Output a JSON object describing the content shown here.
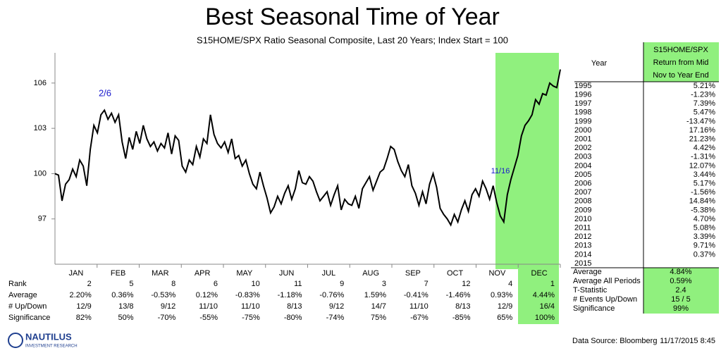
{
  "chart_data": {
    "type": "line",
    "title": "Best Seasonal Time of Year",
    "subtitle": "S15HOME/SPX Ratio Seasonal Composite, Last 20 Years; Index Start = 100",
    "color": "#000000",
    "ylim": [
      94,
      108
    ],
    "yticks": [
      97,
      100,
      103,
      106
    ],
    "annotations": [
      "2/6",
      "11/16"
    ],
    "values": [
      100,
      99.9,
      98.2,
      99.3,
      99.6,
      100.3,
      99.8,
      100.9,
      100.5,
      99.2,
      101.6,
      103.2,
      102.7,
      103.9,
      104.2,
      103.6,
      104.0,
      103.4,
      103.9,
      102.1,
      101.0,
      102.4,
      101.6,
      102.8,
      102.0,
      103.2,
      102.3,
      101.8,
      102.1,
      101.5,
      102.0,
      101.7,
      102.7,
      101.3,
      102.5,
      102.2,
      100.5,
      100.1,
      100.9,
      100.6,
      101.8,
      101.1,
      102.3,
      102.0,
      103.9,
      102.6,
      102.0,
      101.7,
      102.1,
      101.4,
      102.3,
      101.0,
      101.2,
      100.5,
      100.9,
      100.0,
      99.3,
      99.0,
      100.1,
      99.2,
      98.4,
      97.4,
      97.8,
      98.5,
      98.0,
      98.7,
      99.2,
      98.3,
      99.0,
      100.2,
      99.4,
      99.3,
      99.8,
      99.5,
      98.8,
      98.2,
      98.5,
      98.8,
      97.9,
      98.6,
      99.2,
      97.6,
      98.3,
      98.0,
      97.9,
      98.5,
      97.7,
      99.0,
      99.4,
      99.8,
      98.9,
      99.5,
      100.1,
      100.3,
      101.0,
      101.8,
      101.6,
      100.8,
      100.2,
      99.8,
      100.6,
      99.2,
      98.7,
      97.9,
      98.8,
      98.0,
      99.3,
      100.0,
      99.1,
      97.7,
      97.3,
      97.0,
      96.6,
      97.3,
      96.8,
      97.6,
      98.2,
      97.5,
      98.6,
      99.0,
      98.5,
      99.5,
      99.0,
      98.3,
      99.2,
      98.1,
      97.2,
      96.8,
      98.6,
      99.6,
      100.4,
      101.2,
      102.5,
      103.2,
      103.5,
      103.9,
      104.9,
      104.6,
      105.3,
      105.2,
      106.0,
      105.8,
      105.7,
      106.9
    ]
  },
  "month_table": {
    "columns": [
      "JAN",
      "FEB",
      "MAR",
      "APR",
      "MAY",
      "JUN",
      "JUL",
      "AUG",
      "SEP",
      "OCT",
      "NOV",
      "DEC"
    ],
    "rows": [
      {
        "label": "Rank",
        "values": [
          "2",
          "5",
          "8",
          "6",
          "10",
          "11",
          "9",
          "3",
          "7",
          "12",
          "4",
          "1"
        ]
      },
      {
        "label": "Average",
        "values": [
          "2.20%",
          "0.36%",
          "-0.53%",
          "0.12%",
          "-0.83%",
          "-1.18%",
          "-0.76%",
          "1.59%",
          "-0.41%",
          "-1.46%",
          "0.93%",
          "4.44%"
        ]
      },
      {
        "label": "# Up/Down",
        "values": [
          "12/9",
          "13/8",
          "9/12",
          "11/10",
          "11/10",
          "8/13",
          "9/12",
          "14/7",
          "11/10",
          "8/13",
          "12/9",
          "16/4"
        ]
      },
      {
        "label": "Significance",
        "values": [
          "82%",
          "50%",
          "-70%",
          "-55%",
          "-75%",
          "-80%",
          "-74%",
          "75%",
          "-67%",
          "-85%",
          "65%",
          "100%"
        ]
      }
    ]
  },
  "year_table": {
    "year_header": "Year",
    "value_header": [
      "S15HOME/SPX",
      "Return from Mid",
      "Nov to Year End"
    ],
    "rows": [
      [
        "1995",
        "5.21%"
      ],
      [
        "1996",
        "-1.23%"
      ],
      [
        "1997",
        "7.39%"
      ],
      [
        "1998",
        "5.47%"
      ],
      [
        "1999",
        "-13.47%"
      ],
      [
        "2000",
        "17.16%"
      ],
      [
        "2001",
        "21.23%"
      ],
      [
        "2002",
        "4.42%"
      ],
      [
        "2003",
        "-1.31%"
      ],
      [
        "2004",
        "12.07%"
      ],
      [
        "2005",
        "3.44%"
      ],
      [
        "2006",
        "5.17%"
      ],
      [
        "2007",
        "-1.56%"
      ],
      [
        "2008",
        "14.84%"
      ],
      [
        "2009",
        "-5.38%"
      ],
      [
        "2010",
        "4.70%"
      ],
      [
        "2011",
        "5.08%"
      ],
      [
        "2012",
        "3.39%"
      ],
      [
        "2013",
        "9.71%"
      ],
      [
        "2014",
        "0.37%"
      ],
      [
        "2015"
      ]
    ],
    "summary": [
      [
        "Average",
        "4.84%"
      ],
      [
        "Average All Periods",
        "0.59%"
      ],
      [
        "T-Statistic",
        "2.4"
      ],
      [
        "# Events Up/Down",
        "15 / 5"
      ],
      [
        "Significance",
        "99%"
      ]
    ]
  },
  "footer": {
    "logo": "NAUTILUS",
    "logo_sub": "INVESTMENT RESEARCH",
    "source": "Data Source: Bloomberg",
    "timestamp": "11/17/2015 8:45"
  }
}
